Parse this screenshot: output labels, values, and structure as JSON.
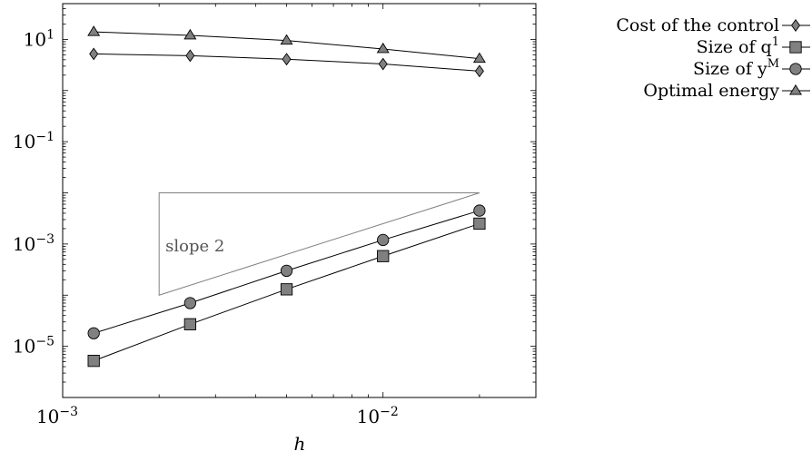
{
  "chart_data": {
    "type": "line",
    "title": "",
    "xlabel": "h",
    "ylabel": "",
    "xscale": "log",
    "yscale": "log",
    "xlim": [
      0.001,
      0.03
    ],
    "ylim": [
      1e-06,
      50
    ],
    "grid": false,
    "legend_position": "outside-top-right",
    "x_ticks": [
      {
        "base": "10",
        "exp": "−3"
      },
      {
        "base": "10",
        "exp": "−2"
      }
    ],
    "y_ticks": [
      {
        "base": "10",
        "exp": "−5"
      },
      {
        "base": "10",
        "exp": "−3"
      },
      {
        "base": "10",
        "exp": "−1"
      },
      {
        "base": "10",
        "exp": "1"
      }
    ],
    "series": [
      {
        "name": "Cost of the control",
        "marker": "diamond",
        "x": [
          0.00125,
          0.0025,
          0.005,
          0.01,
          0.02
        ],
        "y": [
          5.2,
          4.8,
          4.1,
          3.3,
          2.4
        ]
      },
      {
        "name": "Size of q^1",
        "marker": "square",
        "x": [
          0.00125,
          0.0025,
          0.005,
          0.01,
          0.02
        ],
        "y": [
          5.2e-06,
          2.7e-05,
          0.00013,
          0.00058,
          0.0025
        ]
      },
      {
        "name": "Size of y^M",
        "marker": "circle",
        "x": [
          0.00125,
          0.0025,
          0.005,
          0.01,
          0.02
        ],
        "y": [
          1.8e-05,
          7e-05,
          0.0003,
          0.0012,
          0.0045
        ]
      },
      {
        "name": "Optimal energy",
        "marker": "triangle",
        "x": [
          0.00125,
          0.0025,
          0.005,
          0.01,
          0.02
        ],
        "y": [
          14,
          12,
          9.5,
          6.5,
          4.2
        ]
      }
    ],
    "legend": [
      {
        "text": "Cost of the control",
        "sup": ""
      },
      {
        "text": "Size of q",
        "sup": "1"
      },
      {
        "text": "Size of y",
        "sup": "M"
      },
      {
        "text": "Optimal energy",
        "sup": ""
      }
    ],
    "annotation": {
      "text": "slope 2",
      "triangle": [
        [
          0.002,
          0.0001
        ],
        [
          0.02,
          0.01
        ],
        [
          0.002,
          0.01
        ]
      ]
    },
    "colors": {
      "marker_fill": "#808080",
      "line": "#000000",
      "annotation": "#808080"
    }
  }
}
